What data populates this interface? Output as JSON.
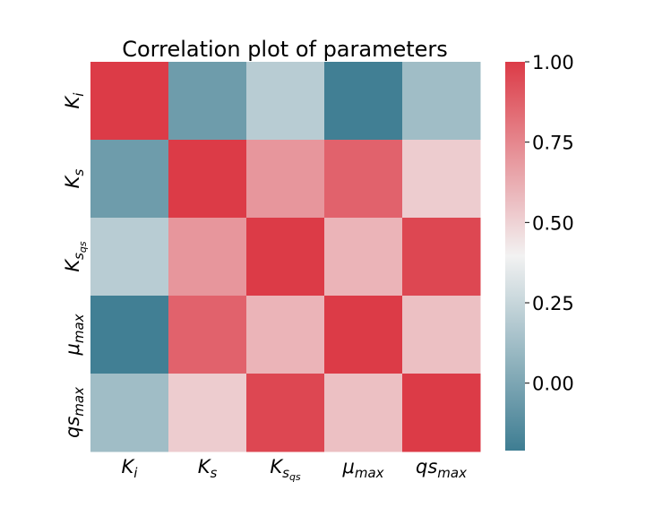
{
  "chart_data": {
    "type": "heatmap",
    "title": "Correlation plot of parameters",
    "row_labels": [
      "K_i",
      "K_s",
      "K_{s_{qs}}",
      "μ_max",
      "qs_max"
    ],
    "col_labels": [
      "K_i",
      "K_s",
      "K_{s_{qs}}",
      "μ_max",
      "qs_max"
    ],
    "values": [
      [
        1.0,
        -0.05,
        0.2,
        -0.2,
        0.12
      ],
      [
        -0.05,
        1.0,
        0.7,
        0.87,
        0.52
      ],
      [
        0.2,
        0.7,
        1.0,
        0.6,
        0.96
      ],
      [
        -0.2,
        0.87,
        0.6,
        1.0,
        0.56
      ],
      [
        0.12,
        0.52,
        0.96,
        0.56,
        1.0
      ]
    ],
    "colorbar": {
      "min": -0.21,
      "max": 1.0,
      "ticks": [
        1.0,
        0.75,
        0.5,
        0.25,
        0.0
      ],
      "tick_labels": [
        "1.00",
        "0.75",
        "0.50",
        "0.25",
        "0.00"
      ]
    },
    "colormap": {
      "low": "#3e7d92",
      "mid": "#f2f2f2",
      "high": "#dc3b47",
      "center": 0.5
    },
    "grid": false,
    "legend": "colorbar-right"
  }
}
